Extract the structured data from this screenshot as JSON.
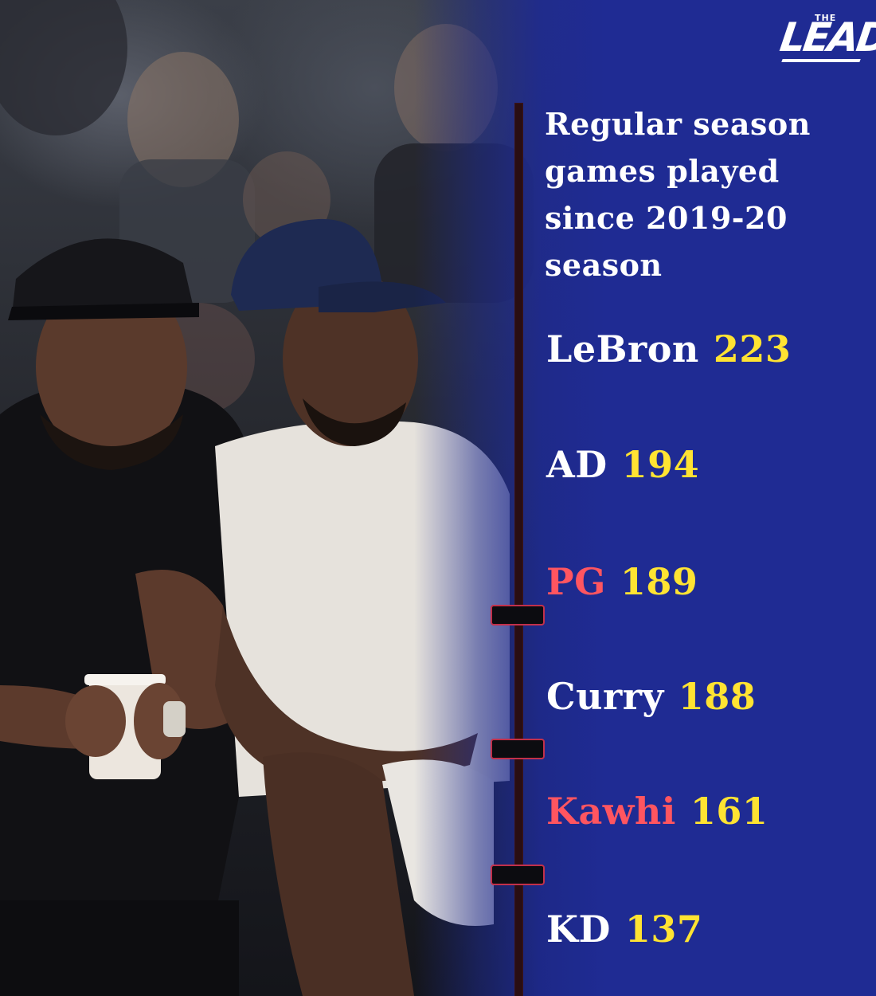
{
  "logo": {
    "word": "LEAD",
    "prefix": "THE"
  },
  "heading": "Regular season games played since 2019-20 season",
  "players": [
    {
      "name": "LeBron",
      "games": "223",
      "highlight": false
    },
    {
      "name": "AD",
      "games": "194",
      "highlight": false
    },
    {
      "name": "PG",
      "games": "189",
      "highlight": true
    },
    {
      "name": "Curry",
      "games": "188",
      "highlight": false
    },
    {
      "name": "Kawhi",
      "games": "161",
      "highlight": true
    },
    {
      "name": "KD",
      "games": "137",
      "highlight": false
    }
  ],
  "colors": {
    "panel": "#1f2b93",
    "name": "#ffffff",
    "highlight_name": "#ff5560",
    "value": "#ffe332",
    "timeline": "#2a0e12",
    "tick_border": "#c2304a"
  }
}
